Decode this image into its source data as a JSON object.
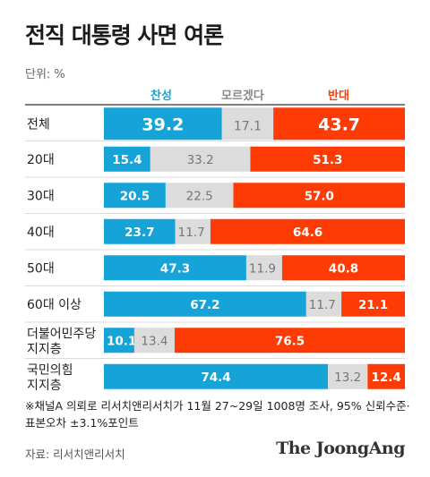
{
  "title": "전직 대통령 사면 여론",
  "unit": "단위: %",
  "note": "※채널A 의뢰로 리서치앤리서치가 11월 27~29일 1008명 조사, 95% 신뢰수준·표본오차 ±3.1%포인트",
  "source": "자료: 리서치앤리서치",
  "brand": "The JoongAng",
  "colors": {
    "approve": "#16a4d8",
    "unsure": "#dcdcdc",
    "oppose": "#ff3b05"
  },
  "chart_data": {
    "type": "bar",
    "stacked": true,
    "orientation": "horizontal",
    "xlim": [
      0,
      100
    ],
    "grid": false,
    "legend_position": "top",
    "categories": [
      "전체",
      "20대",
      "30대",
      "40대",
      "50대",
      "60대 이상",
      "더불어민주당\n지지층",
      "국민의힘\n지지층"
    ],
    "series": [
      {
        "name": "찬성",
        "values": [
          39.2,
          15.4,
          20.5,
          23.7,
          47.3,
          67.2,
          10.1,
          74.4
        ]
      },
      {
        "name": "모르겠다",
        "values": [
          17.1,
          33.2,
          22.5,
          11.7,
          11.9,
          11.7,
          13.4,
          13.2
        ]
      },
      {
        "name": "반대",
        "values": [
          43.7,
          51.3,
          57.0,
          64.6,
          40.8,
          21.1,
          76.5,
          12.4
        ]
      }
    ]
  }
}
